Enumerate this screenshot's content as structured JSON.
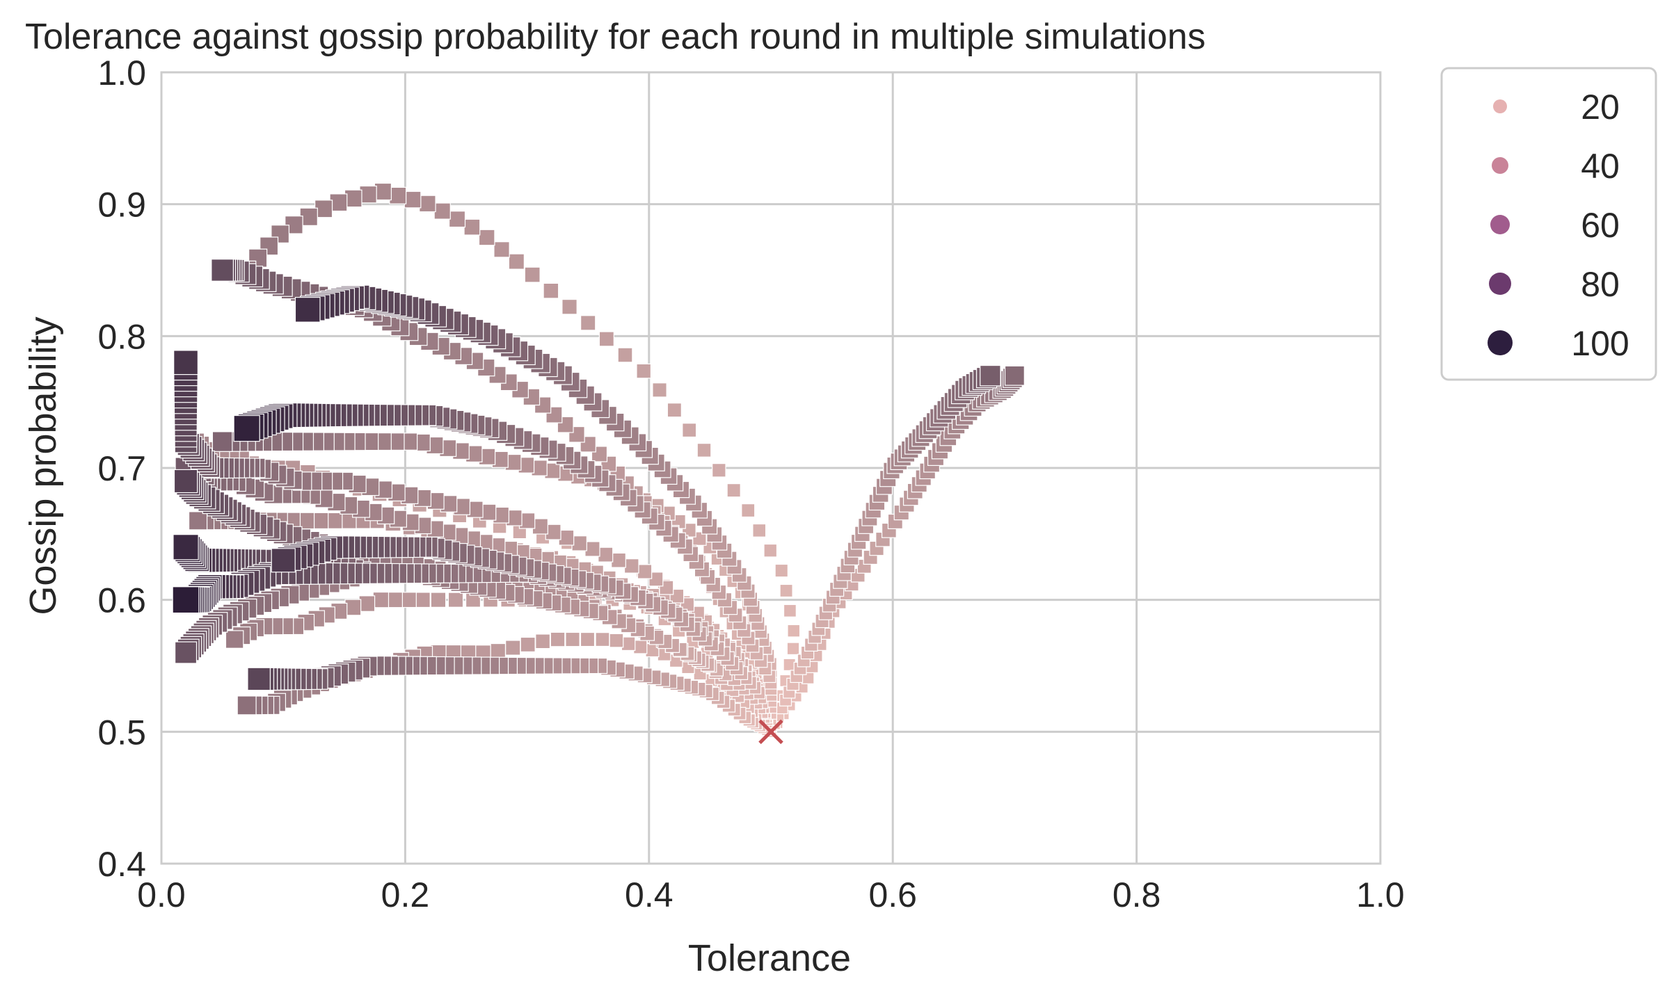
{
  "chart_data": {
    "type": "scatter",
    "title": "Tolerance against gossip probability for each round in multiple simulations",
    "xlabel": "Tolerance",
    "ylabel": "Gossip probability",
    "xlim": [
      0.0,
      1.0
    ],
    "ylim": [
      0.4,
      1.0
    ],
    "xticks": [
      "0.0",
      "0.2",
      "0.4",
      "0.6",
      "0.8",
      "1.0"
    ],
    "yticks": [
      "0.4",
      "0.5",
      "0.6",
      "0.7",
      "0.8",
      "0.9",
      "1.0"
    ],
    "grid": true,
    "marker": "square",
    "hue_variable": "round",
    "legend": {
      "placement": "outside-right-top",
      "entries": [
        {
          "label": "20",
          "color": "#e6b1b1"
        },
        {
          "label": "40",
          "color": "#c98398"
        },
        {
          "label": "60",
          "color": "#a15c8d"
        },
        {
          "label": "80",
          "color": "#6b3a6d"
        },
        {
          "label": "100",
          "color": "#2d1e3e"
        }
      ]
    },
    "color_scale": {
      "min_round": 1,
      "max_round": 100,
      "light": "#eec4bd",
      "dark": "#2a1b36"
    },
    "start_point": {
      "x": 0.5,
      "y": 0.5,
      "marker": "x",
      "color": "#c44e52"
    },
    "series": [
      {
        "points": [
          [
            0.5,
            0.5
          ],
          [
            0.49,
            0.52
          ],
          [
            0.47,
            0.55
          ],
          [
            0.44,
            0.59
          ],
          [
            0.4,
            0.62
          ],
          [
            0.35,
            0.64
          ],
          [
            0.3,
            0.65
          ],
          [
            0.26,
            0.66
          ],
          [
            0.22,
            0.67
          ],
          [
            0.18,
            0.68
          ],
          [
            0.14,
            0.69
          ],
          [
            0.11,
            0.7
          ],
          [
            0.08,
            0.7
          ],
          [
            0.06,
            0.71
          ],
          [
            0.04,
            0.71
          ],
          [
            0.03,
            0.72
          ],
          [
            0.02,
            0.72
          ]
        ]
      },
      {
        "points": [
          [
            0.5,
            0.5
          ],
          [
            0.51,
            0.53
          ],
          [
            0.52,
            0.57
          ],
          [
            0.51,
            0.62
          ],
          [
            0.48,
            0.67
          ],
          [
            0.44,
            0.72
          ],
          [
            0.4,
            0.77
          ],
          [
            0.35,
            0.81
          ],
          [
            0.3,
            0.85
          ],
          [
            0.26,
            0.88
          ],
          [
            0.22,
            0.9
          ],
          [
            0.18,
            0.91
          ],
          [
            0.14,
            0.9
          ],
          [
            0.1,
            0.88
          ],
          [
            0.07,
            0.85
          ]
        ]
      },
      {
        "points": [
          [
            0.5,
            0.5
          ],
          [
            0.53,
            0.54
          ],
          [
            0.55,
            0.59
          ],
          [
            0.58,
            0.63
          ],
          [
            0.61,
            0.67
          ],
          [
            0.63,
            0.7
          ],
          [
            0.65,
            0.73
          ],
          [
            0.67,
            0.75
          ],
          [
            0.69,
            0.76
          ],
          [
            0.7,
            0.77
          ]
        ]
      },
      {
        "points": [
          [
            0.5,
            0.5
          ],
          [
            0.52,
            0.54
          ],
          [
            0.54,
            0.58
          ],
          [
            0.56,
            0.62
          ],
          [
            0.58,
            0.66
          ],
          [
            0.6,
            0.7
          ],
          [
            0.62,
            0.72
          ],
          [
            0.64,
            0.74
          ],
          [
            0.66,
            0.76
          ],
          [
            0.68,
            0.77
          ]
        ]
      },
      {
        "points": [
          [
            0.5,
            0.5
          ],
          [
            0.49,
            0.53
          ],
          [
            0.46,
            0.57
          ],
          [
            0.42,
            0.6
          ],
          [
            0.37,
            0.61
          ],
          [
            0.32,
            0.62
          ],
          [
            0.27,
            0.62
          ],
          [
            0.22,
            0.62
          ],
          [
            0.17,
            0.62
          ],
          [
            0.13,
            0.61
          ],
          [
            0.09,
            0.6
          ],
          [
            0.06,
            0.59
          ],
          [
            0.04,
            0.58
          ],
          [
            0.03,
            0.57
          ],
          [
            0.02,
            0.56
          ]
        ]
      },
      {
        "points": [
          [
            0.5,
            0.5
          ],
          [
            0.48,
            0.51
          ],
          [
            0.45,
            0.53
          ],
          [
            0.41,
            0.54
          ],
          [
            0.36,
            0.55
          ],
          [
            0.31,
            0.55
          ],
          [
            0.26,
            0.55
          ],
          [
            0.21,
            0.55
          ],
          [
            0.17,
            0.55
          ],
          [
            0.13,
            0.54
          ],
          [
            0.1,
            0.54
          ],
          [
            0.08,
            0.54
          ]
        ]
      },
      {
        "points": [
          [
            0.5,
            0.5
          ],
          [
            0.49,
            0.53
          ],
          [
            0.46,
            0.56
          ],
          [
            0.42,
            0.59
          ],
          [
            0.37,
            0.61
          ],
          [
            0.32,
            0.62
          ],
          [
            0.27,
            0.63
          ],
          [
            0.22,
            0.64
          ],
          [
            0.18,
            0.64
          ],
          [
            0.14,
            0.64
          ],
          [
            0.1,
            0.63
          ]
        ]
      },
      {
        "points": [
          [
            0.5,
            0.5
          ],
          [
            0.5,
            0.55
          ],
          [
            0.48,
            0.61
          ],
          [
            0.44,
            0.67
          ],
          [
            0.39,
            0.72
          ],
          [
            0.33,
            0.77
          ],
          [
            0.27,
            0.8
          ],
          [
            0.21,
            0.82
          ],
          [
            0.16,
            0.83
          ],
          [
            0.12,
            0.82
          ]
        ]
      },
      {
        "points": [
          [
            0.5,
            0.5
          ],
          [
            0.5,
            0.54
          ],
          [
            0.47,
            0.59
          ],
          [
            0.43,
            0.64
          ],
          [
            0.38,
            0.68
          ],
          [
            0.33,
            0.71
          ],
          [
            0.27,
            0.73
          ],
          [
            0.22,
            0.74
          ],
          [
            0.17,
            0.74
          ],
          [
            0.13,
            0.74
          ],
          [
            0.1,
            0.74
          ],
          [
            0.07,
            0.73
          ]
        ]
      },
      {
        "points": [
          [
            0.5,
            0.5
          ],
          [
            0.49,
            0.53
          ],
          [
            0.46,
            0.56
          ],
          [
            0.42,
            0.59
          ],
          [
            0.37,
            0.6
          ],
          [
            0.32,
            0.6
          ],
          [
            0.27,
            0.6
          ],
          [
            0.22,
            0.6
          ],
          [
            0.18,
            0.6
          ],
          [
            0.14,
            0.59
          ],
          [
            0.11,
            0.58
          ],
          [
            0.08,
            0.58
          ],
          [
            0.06,
            0.57
          ]
        ]
      },
      {
        "points": [
          [
            0.5,
            0.5
          ],
          [
            0.48,
            0.52
          ],
          [
            0.45,
            0.54
          ],
          [
            0.41,
            0.56
          ],
          [
            0.37,
            0.57
          ],
          [
            0.32,
            0.57
          ],
          [
            0.27,
            0.56
          ],
          [
            0.22,
            0.56
          ],
          [
            0.18,
            0.55
          ],
          [
            0.14,
            0.54
          ],
          [
            0.11,
            0.53
          ],
          [
            0.09,
            0.52
          ],
          [
            0.07,
            0.52
          ]
        ]
      },
      {
        "points": [
          [
            0.5,
            0.5
          ],
          [
            0.5,
            0.55
          ],
          [
            0.48,
            0.6
          ],
          [
            0.45,
            0.64
          ],
          [
            0.41,
            0.67
          ],
          [
            0.36,
            0.69
          ],
          [
            0.31,
            0.7
          ],
          [
            0.26,
            0.71
          ],
          [
            0.21,
            0.72
          ],
          [
            0.16,
            0.72
          ],
          [
            0.12,
            0.72
          ],
          [
            0.08,
            0.72
          ],
          [
            0.05,
            0.72
          ]
        ]
      },
      {
        "points": [
          [
            0.5,
            0.5
          ],
          [
            0.49,
            0.52
          ],
          [
            0.47,
            0.55
          ],
          [
            0.44,
            0.58
          ],
          [
            0.4,
            0.6
          ],
          [
            0.36,
            0.62
          ],
          [
            0.32,
            0.63
          ],
          [
            0.28,
            0.64
          ],
          [
            0.24,
            0.65
          ],
          [
            0.2,
            0.66
          ],
          [
            0.16,
            0.67
          ],
          [
            0.12,
            0.68
          ],
          [
            0.09,
            0.68
          ],
          [
            0.06,
            0.69
          ],
          [
            0.04,
            0.69
          ],
          [
            0.03,
            0.7
          ],
          [
            0.02,
            0.7
          ]
        ]
      },
      {
        "points": [
          [
            0.5,
            0.5
          ],
          [
            0.49,
            0.54
          ],
          [
            0.47,
            0.58
          ],
          [
            0.44,
            0.63
          ],
          [
            0.4,
            0.67
          ],
          [
            0.36,
            0.71
          ],
          [
            0.31,
            0.75
          ],
          [
            0.26,
            0.78
          ],
          [
            0.21,
            0.8
          ],
          [
            0.17,
            0.82
          ],
          [
            0.13,
            0.83
          ],
          [
            0.09,
            0.84
          ],
          [
            0.06,
            0.85
          ],
          [
            0.05,
            0.85
          ]
        ]
      },
      {
        "points": [
          [
            0.5,
            0.5
          ],
          [
            0.49,
            0.52
          ],
          [
            0.47,
            0.54
          ],
          [
            0.43,
            0.56
          ],
          [
            0.39,
            0.58
          ],
          [
            0.34,
            0.6
          ],
          [
            0.29,
            0.61
          ],
          [
            0.24,
            0.62
          ],
          [
            0.19,
            0.63
          ],
          [
            0.14,
            0.64
          ],
          [
            0.1,
            0.65
          ],
          [
            0.07,
            0.66
          ],
          [
            0.05,
            0.67
          ],
          [
            0.03,
            0.68
          ],
          [
            0.02,
            0.69
          ]
        ]
      },
      {
        "points": [
          [
            0.5,
            0.5
          ],
          [
            0.49,
            0.53
          ],
          [
            0.47,
            0.56
          ],
          [
            0.44,
            0.59
          ],
          [
            0.4,
            0.62
          ],
          [
            0.35,
            0.64
          ],
          [
            0.3,
            0.66
          ],
          [
            0.25,
            0.67
          ],
          [
            0.2,
            0.68
          ],
          [
            0.15,
            0.69
          ],
          [
            0.11,
            0.69
          ],
          [
            0.08,
            0.7
          ],
          [
            0.06,
            0.7
          ],
          [
            0.04,
            0.7
          ],
          [
            0.03,
            0.71
          ],
          [
            0.02,
            0.72
          ],
          [
            0.02,
            0.74
          ],
          [
            0.02,
            0.76
          ],
          [
            0.02,
            0.78
          ]
        ]
      },
      {
        "points": [
          [
            0.5,
            0.5
          ],
          [
            0.48,
            0.52
          ],
          [
            0.45,
            0.55
          ],
          [
            0.41,
            0.57
          ],
          [
            0.36,
            0.59
          ],
          [
            0.31,
            0.6
          ],
          [
            0.26,
            0.61
          ],
          [
            0.21,
            0.62
          ],
          [
            0.17,
            0.62
          ],
          [
            0.13,
            0.63
          ],
          [
            0.1,
            0.63
          ],
          [
            0.07,
            0.63
          ],
          [
            0.05,
            0.63
          ],
          [
            0.03,
            0.63
          ],
          [
            0.02,
            0.64
          ]
        ]
      },
      {
        "points": [
          [
            0.5,
            0.5
          ],
          [
            0.49,
            0.53
          ],
          [
            0.47,
            0.56
          ],
          [
            0.44,
            0.58
          ],
          [
            0.4,
            0.6
          ],
          [
            0.35,
            0.61
          ],
          [
            0.3,
            0.62
          ],
          [
            0.25,
            0.62
          ],
          [
            0.21,
            0.62
          ],
          [
            0.17,
            0.62
          ],
          [
            0.13,
            0.62
          ],
          [
            0.09,
            0.62
          ],
          [
            0.06,
            0.61
          ],
          [
            0.04,
            0.61
          ],
          [
            0.03,
            0.6
          ],
          [
            0.02,
            0.6
          ]
        ]
      },
      {
        "points": [
          [
            0.5,
            0.5
          ],
          [
            0.49,
            0.52
          ],
          [
            0.46,
            0.55
          ],
          [
            0.42,
            0.58
          ],
          [
            0.38,
            0.61
          ],
          [
            0.33,
            0.63
          ],
          [
            0.28,
            0.64
          ],
          [
            0.23,
            0.65
          ],
          [
            0.18,
            0.66
          ],
          [
            0.14,
            0.66
          ],
          [
            0.1,
            0.66
          ],
          [
            0.07,
            0.66
          ],
          [
            0.05,
            0.66
          ],
          [
            0.03,
            0.66
          ]
        ]
      }
    ]
  }
}
